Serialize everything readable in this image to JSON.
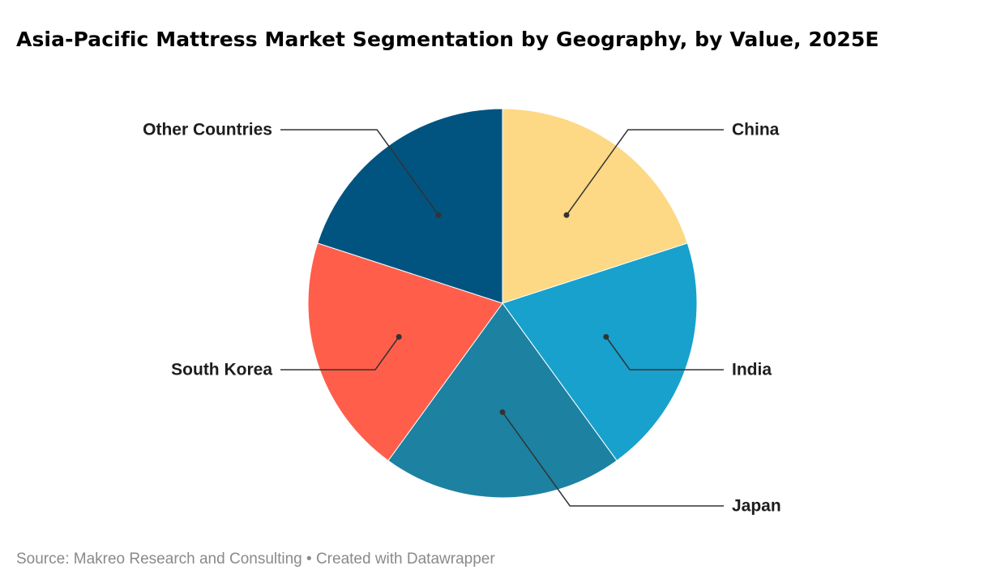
{
  "title": "Asia-Pacific Mattress Market Segmentation by Geography, by Value, 2025E",
  "source": "Source: Makreo Research and Consulting • Created with Datawrapper",
  "chart_data": {
    "type": "pie",
    "title": "Asia-Pacific Mattress Market Segmentation by Geography, by Value, 2025E",
    "categories": [
      "China",
      "India",
      "Japan",
      "South Korea",
      "Other Countries"
    ],
    "values": [
      20,
      20,
      20,
      20,
      20
    ],
    "colors": [
      "#fdd885",
      "#18a1cd",
      "#1d81a2",
      "#ff5e4b",
      "#015480"
    ],
    "legend": "none",
    "labels": "outside-with-leader-lines"
  }
}
